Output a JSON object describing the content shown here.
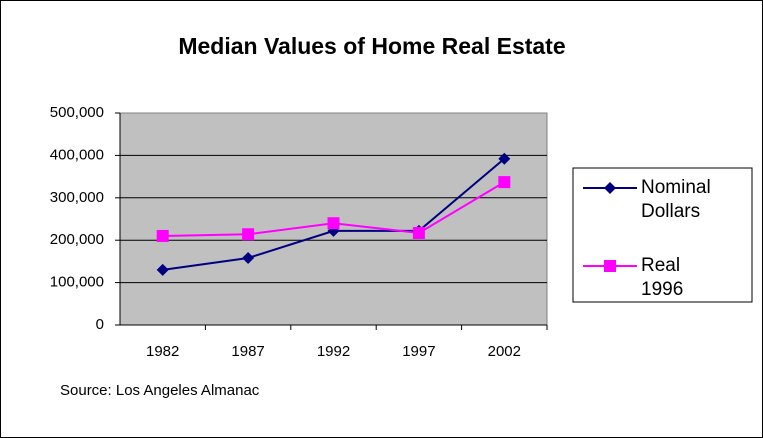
{
  "chart_data": {
    "type": "line",
    "title": "Median Values of Home Real Estate",
    "source": "Source: Los Angeles Almanac",
    "categories": [
      "1982",
      "1987",
      "1992",
      "1997",
      "2002"
    ],
    "series": [
      {
        "name": "Nominal Dollars",
        "color": "#000080",
        "marker": "diamond",
        "values": [
          130000,
          158000,
          222000,
          222000,
          392000
        ]
      },
      {
        "name": "Real 1996",
        "color": "#ff00ff",
        "marker": "square",
        "values": [
          210000,
          214000,
          240000,
          217000,
          337000
        ]
      }
    ],
    "ylim": [
      0,
      500000
    ],
    "yticks": [
      0,
      {
        "value": 100000,
        "label": "100,000"
      },
      {
        "value": 200000,
        "label": "200,000"
      },
      {
        "value": 300000,
        "label": "300,000"
      },
      {
        "value": 400000,
        "label": "400,000"
      },
      {
        "value": 500000,
        "label": "500,000"
      }
    ],
    "grid": true,
    "legend": "right"
  }
}
